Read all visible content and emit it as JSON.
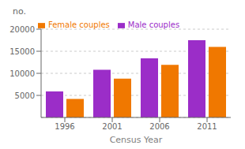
{
  "chart_data": {
    "type": "bar",
    "categories": [
      "1996",
      "2001",
      "2006",
      "2011"
    ],
    "series": [
      {
        "name": "Male couples",
        "color": "#9B2DC8",
        "values": [
          5900,
          10800,
          13400,
          17500
        ]
      },
      {
        "name": "Female couples",
        "color": "#F07800",
        "values": [
          4200,
          8800,
          11900,
          16000
        ]
      }
    ],
    "xlabel": "Census Year",
    "ylabel": "no.",
    "ylim": [
      0,
      20000
    ],
    "yticks": [
      5000,
      10000,
      15000,
      20000
    ],
    "grid": true,
    "legend": "upper left"
  }
}
